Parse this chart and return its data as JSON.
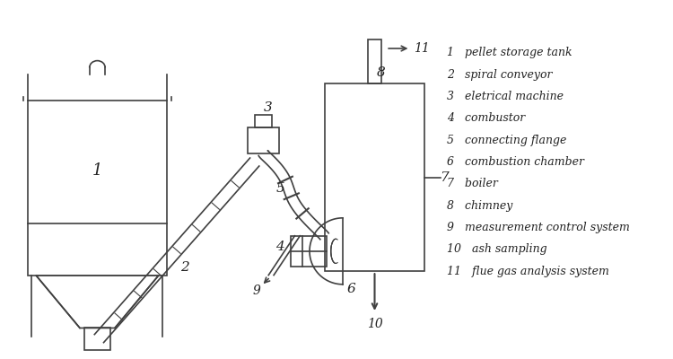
{
  "bg_color": "#ffffff",
  "line_color": "#404040",
  "label_color": "#222222",
  "legend": [
    {
      "num": "1",
      "text": "pellet storage tank"
    },
    {
      "num": "2",
      "text": "spiral conveyor"
    },
    {
      "num": "3",
      "text": "eletrical machine"
    },
    {
      "num": "4",
      "text": "combustor"
    },
    {
      "num": "5",
      "text": "connecting flange"
    },
    {
      "num": "6",
      "text": "combustion chamber"
    },
    {
      "num": "7",
      "text": "boiler"
    },
    {
      "num": "8",
      "text": "chimney"
    },
    {
      "num": "9",
      "text": "measurement control system"
    },
    {
      "num": "10",
      "text": "ash sampling"
    },
    {
      "num": "11",
      "text": "flue gas analysis system"
    }
  ],
  "figsize": [
    7.5,
    4.0
  ],
  "dpi": 100
}
